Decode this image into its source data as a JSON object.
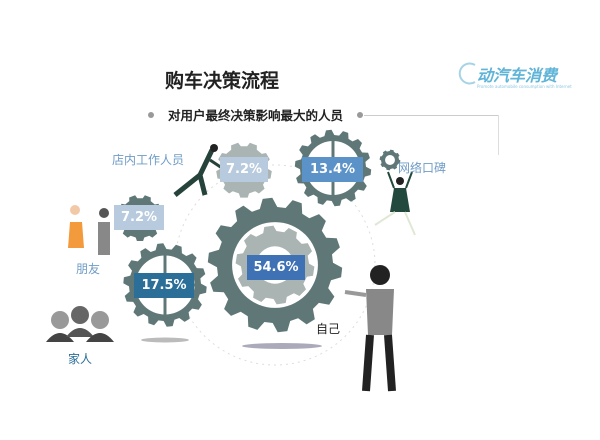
{
  "title": "购车决策流程",
  "subtitle": "对用户最终决策影响最大的人员",
  "logo": {
    "text": "动汽车消费",
    "tagline": "Promote automobile consumption with Internet"
  },
  "colors": {
    "gear": "#5f7877",
    "gear_light": "#a9b4b3",
    "self_box": "#3f72b5",
    "family_box": "#2b6e98",
    "online_box": "#5b92c8",
    "small_box": "#b8cade",
    "label": "#6f9cc6"
  },
  "chart_data": {
    "type": "infographic",
    "title": "对用户最终决策影响最大的人员",
    "categories": [
      "自己",
      "家人",
      "网络口碑",
      "店内工作人员",
      "朋友"
    ],
    "values": [
      54.6,
      17.5,
      13.4,
      7.2,
      7.2
    ],
    "value_labels": [
      "54.6%",
      "17.5%",
      "13.4%",
      "7.2%",
      "7.2%"
    ],
    "unit": "%"
  }
}
